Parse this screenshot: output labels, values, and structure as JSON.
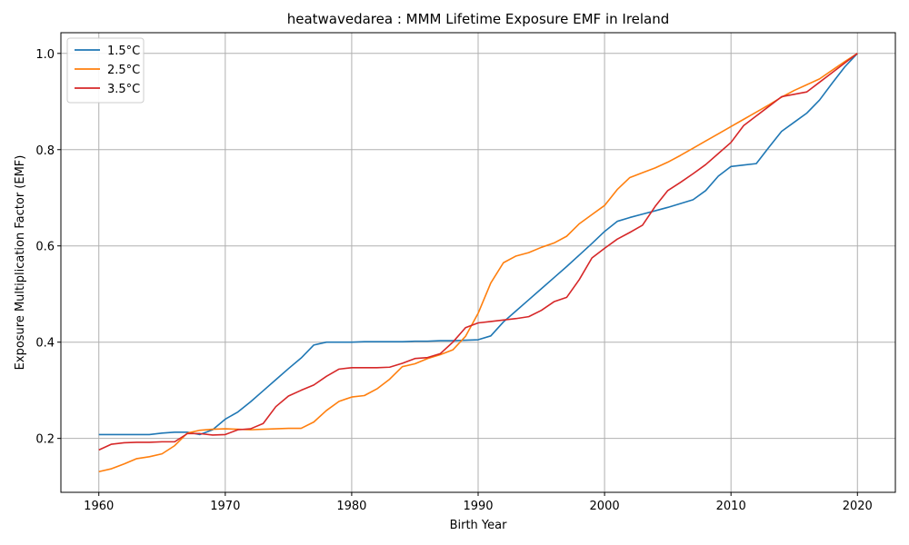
{
  "chart_data": {
    "type": "line",
    "title": "heatwavedarea : MMM Lifetime Exposure EMF in Ireland",
    "xlabel": "Birth Year",
    "ylabel": "Exposure Multiplication Factor (EMF)",
    "xlim": [
      1957,
      2023
    ],
    "ylim": [
      0.088,
      1.043
    ],
    "xticks": [
      1960,
      1970,
      1980,
      1990,
      2000,
      2010,
      2020
    ],
    "yticks": [
      0.2,
      0.4,
      0.6,
      0.8,
      1.0
    ],
    "xtick_labels": [
      "1960",
      "1970",
      "1980",
      "1990",
      "2000",
      "2010",
      "2020"
    ],
    "ytick_labels": [
      "0.2",
      "0.4",
      "0.6",
      "0.8",
      "1.0"
    ],
    "grid": true,
    "legend_position": "top-left",
    "series": [
      {
        "name": "1.5°C",
        "color": "#1f77b4",
        "x": [
          1960,
          1961,
          1962,
          1963,
          1964,
          1965,
          1966,
          1967,
          1968,
          1969,
          1970,
          1971,
          1972,
          1973,
          1974,
          1975,
          1976,
          1977,
          1978,
          1979,
          1980,
          1981,
          1982,
          1983,
          1984,
          1985,
          1986,
          1987,
          1988,
          1989,
          1990,
          1991,
          1992,
          1993,
          1994,
          1995,
          1996,
          1997,
          1998,
          1999,
          2000,
          2001,
          2002,
          2003,
          2004,
          2005,
          2006,
          2007,
          2008,
          2009,
          2010,
          2011,
          2012,
          2013,
          2014,
          2015,
          2016,
          2017,
          2018,
          2019,
          2020
        ],
        "y": [
          0.208,
          0.208,
          0.208,
          0.208,
          0.208,
          0.211,
          0.213,
          0.213,
          0.208,
          0.218,
          0.24,
          0.255,
          0.276,
          0.299,
          0.322,
          0.345,
          0.367,
          0.394,
          0.4,
          0.4,
          0.4,
          0.401,
          0.401,
          0.401,
          0.401,
          0.402,
          0.402,
          0.403,
          0.403,
          0.404,
          0.405,
          0.413,
          0.442,
          0.465,
          0.488,
          0.511,
          0.534,
          0.557,
          0.581,
          0.605,
          0.63,
          0.651,
          0.659,
          0.666,
          0.673,
          0.68,
          0.688,
          0.696,
          0.715,
          0.745,
          0.765,
          0.768,
          0.771,
          0.805,
          0.838,
          0.857,
          0.876,
          0.903,
          0.938,
          0.972,
          1.0
        ]
      },
      {
        "name": "2.5°C",
        "color": "#ff7f0e",
        "x": [
          1960,
          1961,
          1962,
          1963,
          1964,
          1965,
          1966,
          1967,
          1968,
          1969,
          1970,
          1971,
          1972,
          1973,
          1974,
          1975,
          1976,
          1977,
          1978,
          1979,
          1980,
          1981,
          1982,
          1983,
          1984,
          1985,
          1986,
          1987,
          1988,
          1989,
          1990,
          1991,
          1992,
          1993,
          1994,
          1995,
          1996,
          1997,
          1998,
          1999,
          2000,
          2001,
          2002,
          2003,
          2004,
          2005,
          2006,
          2007,
          2008,
          2009,
          2010,
          2011,
          2012,
          2013,
          2014,
          2015,
          2016,
          2017,
          2018,
          2019,
          2020
        ],
        "y": [
          0.131,
          0.137,
          0.147,
          0.158,
          0.162,
          0.168,
          0.185,
          0.211,
          0.217,
          0.219,
          0.22,
          0.219,
          0.218,
          0.219,
          0.22,
          0.221,
          0.221,
          0.234,
          0.258,
          0.277,
          0.286,
          0.289,
          0.303,
          0.323,
          0.349,
          0.355,
          0.366,
          0.374,
          0.384,
          0.412,
          0.46,
          0.523,
          0.565,
          0.579,
          0.586,
          0.597,
          0.606,
          0.62,
          0.646,
          0.665,
          0.684,
          0.717,
          0.742,
          0.752,
          0.762,
          0.774,
          0.788,
          0.803,
          0.818,
          0.833,
          0.848,
          0.863,
          0.878,
          0.893,
          0.909,
          0.923,
          0.935,
          0.947,
          0.965,
          0.983,
          1.0
        ]
      },
      {
        "name": "3.5°C",
        "color": "#d62728",
        "x": [
          1960,
          1961,
          1962,
          1963,
          1964,
          1965,
          1966,
          1967,
          1968,
          1969,
          1970,
          1971,
          1972,
          1973,
          1974,
          1975,
          1976,
          1977,
          1978,
          1979,
          1980,
          1981,
          1982,
          1983,
          1984,
          1985,
          1986,
          1987,
          1988,
          1989,
          1990,
          1991,
          1992,
          1993,
          1994,
          1995,
          1996,
          1997,
          1998,
          1999,
          2000,
          2001,
          2002,
          2003,
          2004,
          2005,
          2006,
          2007,
          2008,
          2009,
          2010,
          2011,
          2012,
          2013,
          2014,
          2015,
          2016,
          2017,
          2018,
          2019,
          2020
        ],
        "y": [
          0.176,
          0.188,
          0.191,
          0.192,
          0.192,
          0.193,
          0.193,
          0.21,
          0.21,
          0.207,
          0.208,
          0.218,
          0.22,
          0.231,
          0.266,
          0.288,
          0.3,
          0.311,
          0.329,
          0.344,
          0.347,
          0.347,
          0.347,
          0.348,
          0.356,
          0.366,
          0.368,
          0.376,
          0.4,
          0.43,
          0.44,
          0.443,
          0.446,
          0.449,
          0.453,
          0.466,
          0.484,
          0.493,
          0.53,
          0.575,
          0.595,
          0.614,
          0.628,
          0.643,
          0.682,
          0.715,
          0.732,
          0.75,
          0.769,
          0.792,
          0.815,
          0.85,
          0.87,
          0.89,
          0.91,
          0.915,
          0.92,
          0.94,
          0.96,
          0.98,
          1.0
        ]
      }
    ]
  }
}
